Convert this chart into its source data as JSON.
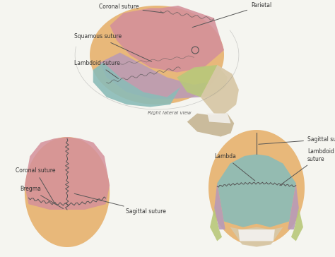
{
  "bg_color": "#f5f5f0",
  "colors": {
    "frontal_temporal": "#e8b87a",
    "parietal_pink": "#d4909a",
    "temporal_purple": "#b89ab8",
    "occipital_teal": "#8bbcb8",
    "sphenoid_green": "#b8c87a",
    "face_beige": "#d8c8a8",
    "mandible_beige": "#c8b898",
    "teeth_white": "#f0ede8",
    "skull_outline": "#888888"
  },
  "labels": {
    "coronal_suture": "Coronal suture",
    "squamous_suture": "Squamous suture",
    "lambdoid_suture": "Lambdoid suture",
    "right_lateral": "Right lateral view",
    "parietal": "Parietal",
    "sagittal_suture": "Sagittal suture",
    "lambdoid_suture2": "Lambdoid\nsuture",
    "lambda_pt": "Lambda",
    "bregma": "Bregma",
    "coronal_suture2": "Coronal suture",
    "sagittal_suture2": "Sagittal suture"
  },
  "font_size": 5.5,
  "line_color": "#555555",
  "line_width": 0.7
}
